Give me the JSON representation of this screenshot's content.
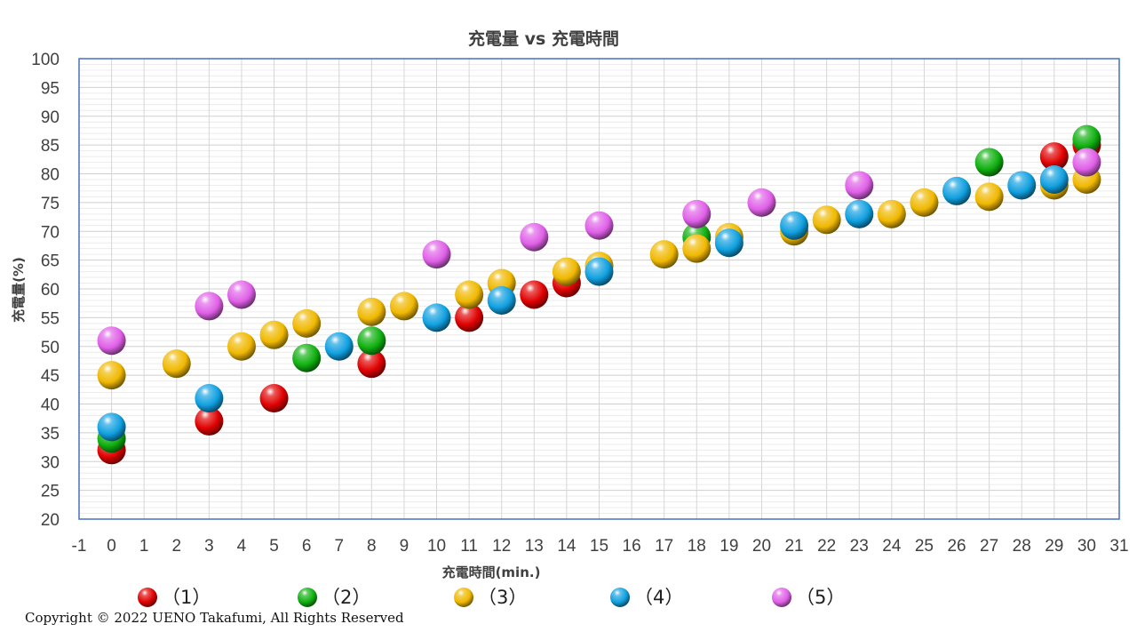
{
  "chart_data": {
    "type": "scatter",
    "title": "充電量 vs 充電時間",
    "xlabel": "充電時間(min.)",
    "ylabel": "充電量(%)",
    "xlim": [
      -1,
      31
    ],
    "ylim": [
      20,
      100
    ],
    "x_major_step": 1,
    "y_major_step": 5,
    "y_minor_step": 1,
    "grid": true,
    "legend_position": "bottom",
    "series": [
      {
        "name": "（1）",
        "color": "#e00000",
        "points": [
          [
            0,
            32
          ],
          [
            3,
            37
          ],
          [
            5,
            41
          ],
          [
            8,
            47
          ],
          [
            11,
            55
          ],
          [
            13,
            59
          ],
          [
            14,
            61
          ],
          [
            29,
            83
          ],
          [
            30,
            85
          ]
        ]
      },
      {
        "name": "（2）",
        "color": "#10b010",
        "points": [
          [
            0,
            34
          ],
          [
            6,
            48
          ],
          [
            8,
            51
          ],
          [
            18,
            69
          ],
          [
            27,
            82
          ],
          [
            30,
            86
          ]
        ]
      },
      {
        "name": "（3）",
        "color": "#f0b800",
        "points": [
          [
            0,
            45
          ],
          [
            2,
            47
          ],
          [
            4,
            50
          ],
          [
            5,
            52
          ],
          [
            6,
            54
          ],
          [
            8,
            56
          ],
          [
            9,
            57
          ],
          [
            11,
            59
          ],
          [
            12,
            61
          ],
          [
            14,
            63
          ],
          [
            15,
            64
          ],
          [
            17,
            66
          ],
          [
            18,
            67
          ],
          [
            19,
            69
          ],
          [
            21,
            70
          ],
          [
            22,
            72
          ],
          [
            24,
            73
          ],
          [
            25,
            75
          ],
          [
            27,
            76
          ],
          [
            29,
            78
          ],
          [
            30,
            79
          ]
        ]
      },
      {
        "name": "（4）",
        "color": "#10a0e0",
        "points": [
          [
            0,
            36
          ],
          [
            3,
            41
          ],
          [
            7,
            50
          ],
          [
            10,
            55
          ],
          [
            12,
            58
          ],
          [
            15,
            63
          ],
          [
            19,
            68
          ],
          [
            21,
            71
          ],
          [
            23,
            73
          ],
          [
            26,
            77
          ],
          [
            28,
            78
          ],
          [
            29,
            79
          ]
        ]
      },
      {
        "name": "（5）",
        "color": "#e060e8",
        "points": [
          [
            0,
            51
          ],
          [
            3,
            57
          ],
          [
            4,
            59
          ],
          [
            10,
            66
          ],
          [
            13,
            69
          ],
          [
            15,
            71
          ],
          [
            18,
            73
          ],
          [
            20,
            75
          ],
          [
            23,
            78
          ],
          [
            30,
            82
          ]
        ]
      }
    ]
  },
  "copyright": "Copyright © 2022 UENO Takafumi, All Rights Reserved"
}
